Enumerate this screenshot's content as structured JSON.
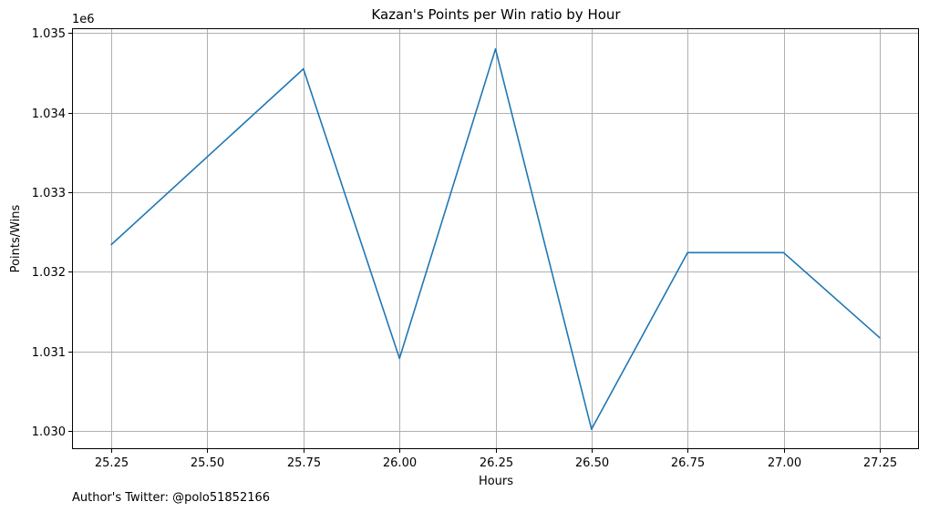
{
  "chart_data": {
    "type": "line",
    "title": "Kazan's Points per Win ratio by Hour",
    "xlabel": "Hours",
    "ylabel": "Points/Wins",
    "y_offset_label": "1e6",
    "xlim": [
      25.15,
      27.35
    ],
    "ylim": [
      1.02978,
      1.03505
    ],
    "x_ticks": [
      25.25,
      25.5,
      25.75,
      26.0,
      26.25,
      26.5,
      26.75,
      27.0,
      27.25
    ],
    "x_tick_labels": [
      "25.25",
      "25.50",
      "25.75",
      "26.00",
      "26.25",
      "26.50",
      "26.75",
      "27.00",
      "27.25"
    ],
    "y_ticks": [
      1.03,
      1.031,
      1.032,
      1.033,
      1.034,
      1.035
    ],
    "y_tick_labels": [
      "1.030",
      "1.031",
      "1.032",
      "1.033",
      "1.034",
      "1.035"
    ],
    "grid": true,
    "series": [
      {
        "color": "#1f77b4",
        "x": [
          25.25,
          25.75,
          26.0,
          26.25,
          26.5,
          26.75,
          27.0,
          27.25
        ],
        "values": [
          1.03234,
          1.03455,
          1.03091,
          1.0348,
          1.03002,
          1.03224,
          1.03224,
          1.03117
        ]
      }
    ]
  },
  "footer": {
    "author_text": "Author's Twitter: @polo51852166"
  }
}
